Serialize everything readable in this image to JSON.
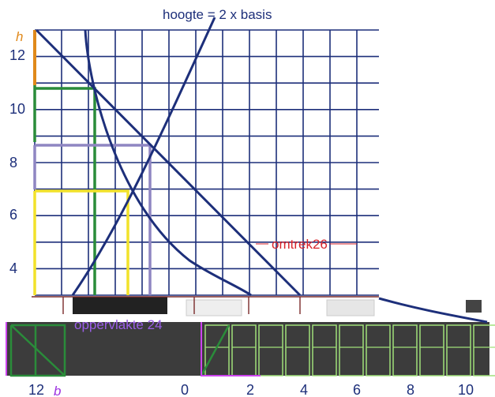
{
  "annotations": {
    "top_label": "hoogte = 2 x basis",
    "perimeter_label": "omtrek26",
    "area_label": "oppervlakte 24"
  },
  "axes": {
    "h_label": "h",
    "b_label": "b",
    "h_ticks": [
      "12",
      "10",
      "8",
      "6",
      "4"
    ],
    "b_ticks": [
      "12",
      "0",
      "2",
      "4",
      "6",
      "8",
      "10"
    ]
  },
  "colors": {
    "grid": "#1d2f7a",
    "h_axis": "#e0891b",
    "rect_green": "#2a8c3a",
    "rect_purple": "#8f86c2",
    "rect_yellow": "#f2e22a",
    "perimeter": "#d8232a",
    "area_text": "#9b5ee8",
    "b_label": "#9b30e0",
    "dark_block": "#3c3c3c"
  }
}
